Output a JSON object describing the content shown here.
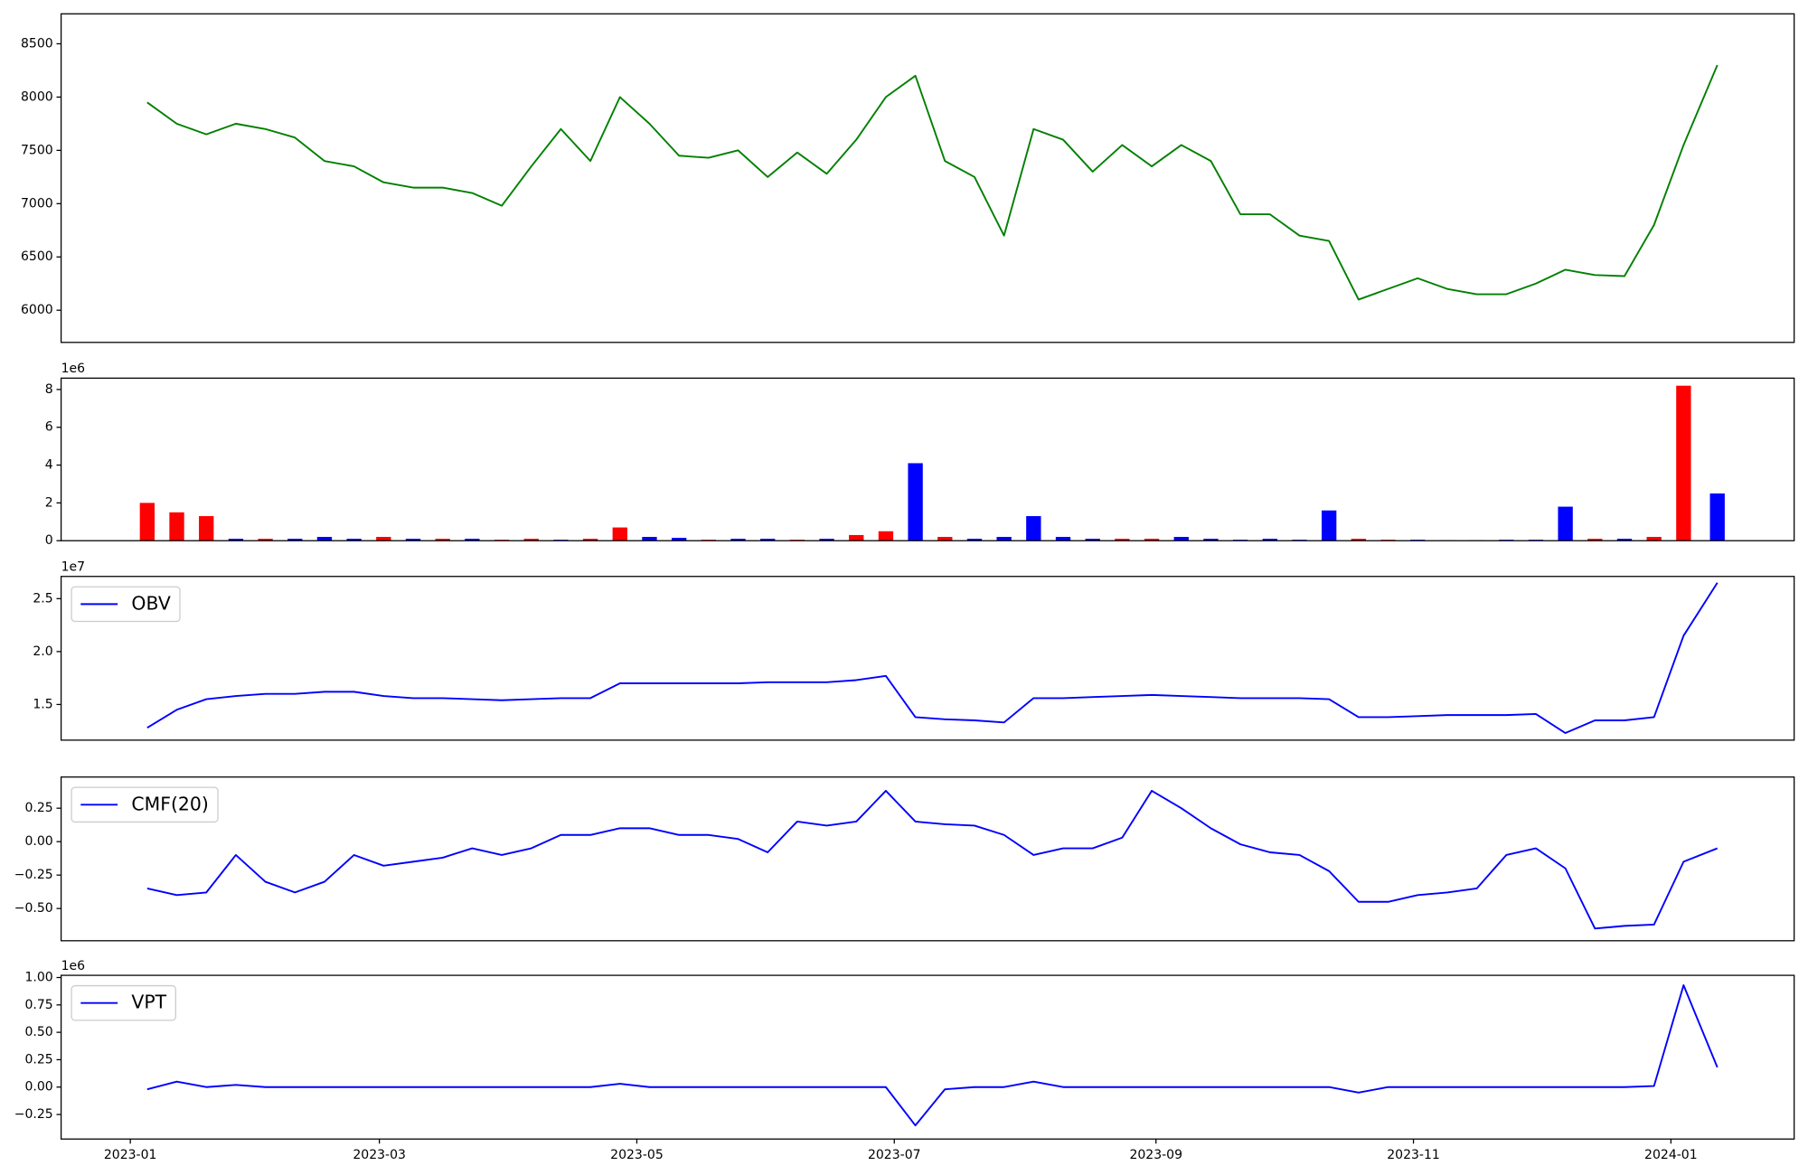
{
  "chart_data": [
    {
      "type": "line",
      "color": "#008000",
      "x": [
        19362,
        19369,
        19376,
        19383,
        19390,
        19397,
        19404,
        19411,
        19418,
        19425,
        19432,
        19439,
        19446,
        19453,
        19460,
        19467,
        19474,
        19481,
        19488,
        19495,
        19502,
        19509,
        19516,
        19523,
        19530,
        19537,
        19544,
        19551,
        19558,
        19565,
        19572,
        19579,
        19586,
        19593,
        19600,
        19607,
        19614,
        19621,
        19628,
        19635,
        19642,
        19649,
        19656,
        19663,
        19670,
        19677,
        19684,
        19691,
        19698,
        19705,
        19712,
        19719,
        19726,
        19734
      ],
      "values": [
        7950,
        7750,
        7650,
        7750,
        7700,
        7620,
        7400,
        7350,
        7200,
        7150,
        7150,
        7100,
        6980,
        7350,
        7700,
        7400,
        8000,
        7750,
        7450,
        7430,
        7500,
        7250,
        7480,
        7280,
        7600,
        8000,
        8200,
        7400,
        7250,
        6700,
        7700,
        7600,
        7300,
        7550,
        7350,
        7550,
        7400,
        6900,
        6900,
        6700,
        6650,
        6100,
        6200,
        6300,
        6200,
        6150,
        6150,
        6250,
        6380,
        6330,
        6320,
        6800,
        7550,
        8300
      ],
      "xlim": [
        19341.6,
        19752.2
      ],
      "ylim": [
        5698,
        8781
      ],
      "yticks": [
        6000,
        6500,
        7000,
        7500,
        8000,
        8500
      ]
    },
    {
      "type": "bar",
      "offset_text": "1e6",
      "x": [
        19362,
        19369,
        19376,
        19383,
        19390,
        19397,
        19404,
        19411,
        19418,
        19425,
        19432,
        19439,
        19446,
        19453,
        19460,
        19467,
        19474,
        19481,
        19488,
        19495,
        19502,
        19509,
        19516,
        19523,
        19530,
        19537,
        19544,
        19551,
        19558,
        19565,
        19572,
        19579,
        19586,
        19593,
        19600,
        19607,
        19614,
        19621,
        19628,
        19635,
        19642,
        19649,
        19656,
        19663,
        19670,
        19677,
        19684,
        19691,
        19698,
        19705,
        19712,
        19719,
        19726,
        19734
      ],
      "series": [
        {
          "color": "#ff0000",
          "values": [
            2.0,
            1.5,
            1.3,
            null,
            0.1,
            null,
            null,
            null,
            0.2,
            null,
            0.1,
            null,
            0.05,
            0.1,
            null,
            0.1,
            0.7,
            null,
            null,
            0.05,
            null,
            null,
            0.05,
            null,
            0.3,
            0.5,
            null,
            0.2,
            null,
            null,
            null,
            null,
            null,
            0.1,
            0.1,
            null,
            null,
            null,
            null,
            null,
            null,
            0.1,
            0.05,
            null,
            null,
            null,
            null,
            null,
            null,
            0.1,
            null,
            0.2,
            8.2,
            null
          ]
        },
        {
          "color": "#0000ff",
          "values": [
            null,
            null,
            null,
            0.1,
            null,
            0.1,
            0.2,
            0.1,
            null,
            0.1,
            null,
            0.1,
            null,
            null,
            0.05,
            null,
            null,
            0.2,
            0.15,
            null,
            0.1,
            0.1,
            null,
            0.1,
            null,
            null,
            4.1,
            null,
            0.1,
            0.2,
            1.3,
            0.2,
            0.1,
            null,
            null,
            0.2,
            0.1,
            0.05,
            0.1,
            0.05,
            1.6,
            null,
            null,
            0.05,
            0.02,
            0.02,
            0.05,
            0.05,
            1.8,
            null,
            0.1,
            null,
            null,
            2.5
          ]
        }
      ],
      "xlim": [
        19341.6,
        19752.2
      ],
      "ylim": [
        0,
        8.6
      ],
      "yticks": [
        0,
        2,
        4,
        6,
        8
      ]
    },
    {
      "type": "line",
      "offset_text": "1e7",
      "legend": "upper left",
      "x": [
        19362,
        19369,
        19376,
        19383,
        19390,
        19397,
        19404,
        19411,
        19418,
        19425,
        19432,
        19439,
        19446,
        19453,
        19460,
        19467,
        19474,
        19481,
        19488,
        19495,
        19502,
        19509,
        19516,
        19523,
        19530,
        19537,
        19544,
        19551,
        19558,
        19565,
        19572,
        19579,
        19586,
        19593,
        19600,
        19607,
        19614,
        19621,
        19628,
        19635,
        19642,
        19649,
        19656,
        19663,
        19670,
        19677,
        19684,
        19691,
        19698,
        19705,
        19712,
        19719,
        19726,
        19734
      ],
      "series": [
        {
          "name": "OBV",
          "color": "#0000ff",
          "values": [
            1.28,
            1.45,
            1.55,
            1.58,
            1.6,
            1.6,
            1.62,
            1.62,
            1.58,
            1.56,
            1.56,
            1.55,
            1.54,
            1.55,
            1.56,
            1.56,
            1.7,
            1.7,
            1.7,
            1.7,
            1.7,
            1.71,
            1.71,
            1.71,
            1.73,
            1.77,
            1.38,
            1.36,
            1.35,
            1.33,
            1.56,
            1.56,
            1.57,
            1.58,
            1.59,
            1.58,
            1.57,
            1.56,
            1.56,
            1.56,
            1.55,
            1.38,
            1.38,
            1.39,
            1.4,
            1.4,
            1.4,
            1.41,
            1.23,
            1.35,
            1.35,
            1.38,
            2.15,
            2.65
          ]
        }
      ],
      "xlim": [
        19341.6,
        19752.2
      ],
      "ylim": [
        1.163,
        2.71
      ],
      "yticks": [
        1.5,
        {
          "value": 2,
          "label": "2.0"
        },
        2.5
      ]
    },
    {
      "type": "line",
      "legend": "upper left",
      "x": [
        19362,
        19369,
        19376,
        19383,
        19390,
        19397,
        19404,
        19411,
        19418,
        19425,
        19432,
        19439,
        19446,
        19453,
        19460,
        19467,
        19474,
        19481,
        19488,
        19495,
        19502,
        19509,
        19516,
        19523,
        19530,
        19537,
        19544,
        19551,
        19558,
        19565,
        19572,
        19579,
        19586,
        19593,
        19600,
        19607,
        19614,
        19621,
        19628,
        19635,
        19642,
        19649,
        19656,
        19663,
        19670,
        19677,
        19684,
        19691,
        19698,
        19705,
        19712,
        19719,
        19726,
        19734
      ],
      "series": [
        {
          "name": "CMF(20)",
          "color": "#0000ff",
          "values": [
            -0.35,
            -0.4,
            -0.38,
            -0.1,
            -0.3,
            -0.38,
            -0.3,
            -0.1,
            -0.18,
            -0.15,
            -0.12,
            -0.05,
            -0.1,
            -0.05,
            0.05,
            0.05,
            0.1,
            0.1,
            0.05,
            0.05,
            0.02,
            -0.08,
            0.15,
            0.12,
            0.15,
            0.38,
            0.15,
            0.13,
            0.12,
            0.05,
            -0.1,
            -0.05,
            -0.05,
            0.03,
            0.38,
            0.25,
            0.1,
            -0.02,
            -0.08,
            -0.1,
            -0.22,
            -0.45,
            -0.45,
            -0.4,
            -0.38,
            -0.35,
            -0.1,
            -0.05,
            -0.2,
            -0.65,
            -0.63,
            -0.62,
            -0.15,
            -0.05
          ]
        }
      ],
      "xlim": [
        19341.6,
        19752.2
      ],
      "ylim": [
        -0.741,
        0.483
      ],
      "yticks": [
        {
          "value": -0.5,
          "label": "−0.50"
        },
        {
          "value": -0.25,
          "label": "−0.25"
        },
        {
          "value": 0,
          "label": "0.00"
        },
        0.25
      ]
    },
    {
      "type": "line",
      "offset_text": "1e6",
      "legend": "upper left",
      "x": [
        19362,
        19369,
        19376,
        19383,
        19390,
        19397,
        19404,
        19411,
        19418,
        19425,
        19432,
        19439,
        19446,
        19453,
        19460,
        19467,
        19474,
        19481,
        19488,
        19495,
        19502,
        19509,
        19516,
        19523,
        19530,
        19537,
        19544,
        19551,
        19558,
        19565,
        19572,
        19579,
        19586,
        19593,
        19600,
        19607,
        19614,
        19621,
        19628,
        19635,
        19642,
        19649,
        19656,
        19663,
        19670,
        19677,
        19684,
        19691,
        19698,
        19705,
        19712,
        19719,
        19726,
        19734
      ],
      "series": [
        {
          "name": "VPT",
          "color": "#0000ff",
          "values": [
            -0.02,
            0.05,
            0.0,
            0.02,
            0,
            0,
            0,
            0,
            0,
            0,
            0,
            0,
            0,
            0,
            0,
            0,
            0.03,
            0,
            0,
            0,
            0,
            0,
            0,
            0,
            0,
            0,
            -0.35,
            -0.02,
            0,
            0,
            0.05,
            0,
            0,
            0,
            0,
            0,
            0,
            0,
            0,
            0,
            0,
            -0.05,
            0,
            0,
            0,
            0,
            0,
            0,
            0,
            0,
            0,
            0.01,
            0.93,
            0.18
          ]
        }
      ],
      "xlim": [
        19341.6,
        19752.2
      ],
      "ylim": [
        -0.474,
        1.02
      ],
      "yticks": [
        {
          "value": -0.25,
          "label": "−0.25"
        },
        {
          "value": 0,
          "label": "0.00"
        },
        0.25,
        {
          "value": 0.5,
          "label": "0.50"
        },
        0.75,
        {
          "value": 1,
          "label": "1.00"
        }
      ],
      "xticks": [
        {
          "value": 19358,
          "label": "2023-01"
        },
        {
          "value": 19417,
          "label": "2023-03"
        },
        {
          "value": 19478,
          "label": "2023-05"
        },
        {
          "value": 19539,
          "label": "2023-07"
        },
        {
          "value": 19601,
          "label": "2023-09"
        },
        {
          "value": 19662,
          "label": "2023-11"
        },
        {
          "value": 19723,
          "label": "2024-01"
        }
      ]
    }
  ]
}
